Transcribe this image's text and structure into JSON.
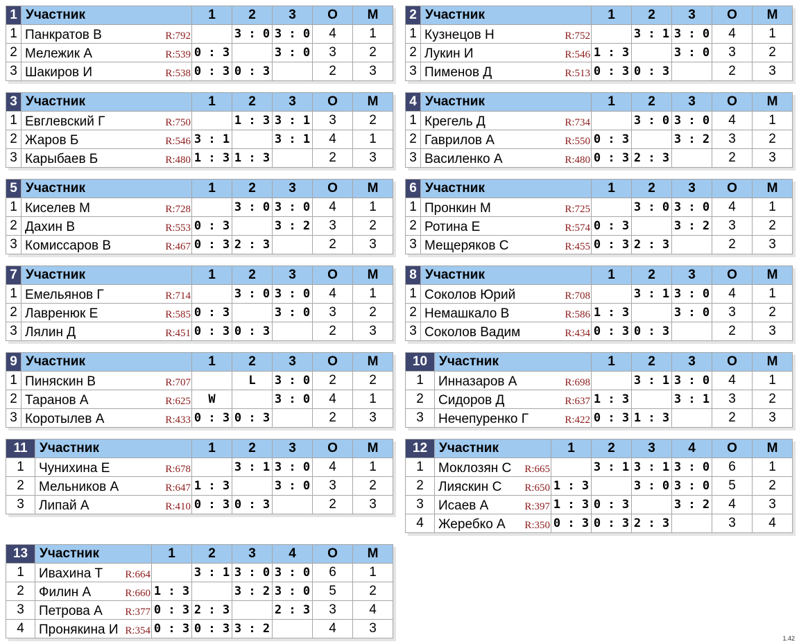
{
  "header": {
    "participant": "Участник",
    "points": "О",
    "place": "М"
  },
  "version": "1.42",
  "colors": {
    "win": "#89f597",
    "loss": "#f29089",
    "header": "#9fc9ef",
    "group_num": "#3e4670"
  },
  "groups": [
    {
      "num": "1",
      "cols": [
        "1",
        "2",
        "3"
      ],
      "players": [
        {
          "idx": "1",
          "name": "Панкратов В",
          "rating": "R:792",
          "res": [
            "",
            "3 : 0",
            "3 : 0"
          ],
          "pts": "4",
          "place": "1"
        },
        {
          "idx": "2",
          "name": "Мележик А",
          "rating": "R:539",
          "res": [
            "0 : 3",
            "",
            "3 : 0"
          ],
          "pts": "3",
          "place": "2"
        },
        {
          "idx": "3",
          "name": "Шакиров И",
          "rating": "R:538",
          "res": [
            "0 : 3",
            "0 : 3",
            ""
          ],
          "pts": "2",
          "place": "3"
        }
      ]
    },
    {
      "num": "2",
      "cols": [
        "1",
        "2",
        "3"
      ],
      "players": [
        {
          "idx": "1",
          "name": "Кузнецов Н",
          "rating": "R:752",
          "res": [
            "",
            "3 : 1",
            "3 : 0"
          ],
          "pts": "4",
          "place": "1"
        },
        {
          "idx": "2",
          "name": "Лукин И",
          "rating": "R:546",
          "res": [
            "1 : 3",
            "",
            "3 : 0"
          ],
          "pts": "3",
          "place": "2"
        },
        {
          "idx": "3",
          "name": "Пименов Д",
          "rating": "R:513",
          "res": [
            "0 : 3",
            "0 : 3",
            ""
          ],
          "pts": "2",
          "place": "3"
        }
      ]
    },
    {
      "num": "3",
      "cols": [
        "1",
        "2",
        "3"
      ],
      "players": [
        {
          "idx": "1",
          "name": "Евглевский Г",
          "rating": "R:750",
          "res": [
            "",
            "1 : 3",
            "3 : 1"
          ],
          "pts": "3",
          "place": "2"
        },
        {
          "idx": "2",
          "name": "Жаров Б",
          "rating": "R:546",
          "res": [
            "3 : 1",
            "",
            "3 : 1"
          ],
          "pts": "4",
          "place": "1"
        },
        {
          "idx": "3",
          "name": "Карыбаев Б",
          "rating": "R:480",
          "res": [
            "1 : 3",
            "1 : 3",
            ""
          ],
          "pts": "2",
          "place": "3"
        }
      ]
    },
    {
      "num": "4",
      "cols": [
        "1",
        "2",
        "3"
      ],
      "players": [
        {
          "idx": "1",
          "name": "Крегель Д",
          "rating": "R:734",
          "res": [
            "",
            "3 : 0",
            "3 : 0"
          ],
          "pts": "4",
          "place": "1"
        },
        {
          "idx": "2",
          "name": "Гаврилов А",
          "rating": "R:550",
          "res": [
            "0 : 3",
            "",
            "3 : 2"
          ],
          "pts": "3",
          "place": "2"
        },
        {
          "idx": "3",
          "name": "Василенко А",
          "rating": "R:480",
          "res": [
            "0 : 3",
            "2 : 3",
            ""
          ],
          "pts": "2",
          "place": "3"
        }
      ]
    },
    {
      "num": "5",
      "cols": [
        "1",
        "2",
        "3"
      ],
      "players": [
        {
          "idx": "1",
          "name": "Киселев М",
          "rating": "R:728",
          "res": [
            "",
            "3 : 0",
            "3 : 0"
          ],
          "pts": "4",
          "place": "1"
        },
        {
          "idx": "2",
          "name": "Дахин В",
          "rating": "R:553",
          "res": [
            "0 : 3",
            "",
            "3 : 2"
          ],
          "pts": "3",
          "place": "2"
        },
        {
          "idx": "3",
          "name": "Комиссаров В",
          "rating": "R:467",
          "res": [
            "0 : 3",
            "2 : 3",
            ""
          ],
          "pts": "2",
          "place": "3"
        }
      ]
    },
    {
      "num": "6",
      "cols": [
        "1",
        "2",
        "3"
      ],
      "players": [
        {
          "idx": "1",
          "name": "Пронкин М",
          "rating": "R:725",
          "res": [
            "",
            "3 : 0",
            "3 : 0"
          ],
          "pts": "4",
          "place": "1"
        },
        {
          "idx": "2",
          "name": "Ротина Е",
          "rating": "R:574",
          "res": [
            "0 : 3",
            "",
            "3 : 2"
          ],
          "pts": "3",
          "place": "2"
        },
        {
          "idx": "3",
          "name": "Мещеряков С",
          "rating": "R:455",
          "res": [
            "0 : 3",
            "2 : 3",
            ""
          ],
          "pts": "2",
          "place": "3"
        }
      ]
    },
    {
      "num": "7",
      "cols": [
        "1",
        "2",
        "3"
      ],
      "players": [
        {
          "idx": "1",
          "name": "Емельянов Г",
          "rating": "R:714",
          "res": [
            "",
            "3 : 0",
            "3 : 0"
          ],
          "pts": "4",
          "place": "1"
        },
        {
          "idx": "2",
          "name": "Лавренюк Е",
          "rating": "R:585",
          "res": [
            "0 : 3",
            "",
            "3 : 0"
          ],
          "pts": "3",
          "place": "2"
        },
        {
          "idx": "3",
          "name": "Лялин Д",
          "rating": "R:451",
          "res": [
            "0 : 3",
            "0 : 3",
            ""
          ],
          "pts": "2",
          "place": "3"
        }
      ]
    },
    {
      "num": "8",
      "cols": [
        "1",
        "2",
        "3"
      ],
      "players": [
        {
          "idx": "1",
          "name": "Соколов Юрий",
          "rating": "R:708",
          "res": [
            "",
            "3 : 1",
            "3 : 0"
          ],
          "pts": "4",
          "place": "1"
        },
        {
          "idx": "2",
          "name": "Немашкало В",
          "rating": "R:586",
          "res": [
            "1 : 3",
            "",
            "3 : 0"
          ],
          "pts": "3",
          "place": "2"
        },
        {
          "idx": "3",
          "name": "Соколов Вадим",
          "rating": "R:434",
          "res": [
            "0 : 3",
            "0 : 3",
            ""
          ],
          "pts": "2",
          "place": "3"
        }
      ]
    },
    {
      "num": "9",
      "cols": [
        "1",
        "2",
        "3"
      ],
      "players": [
        {
          "idx": "1",
          "name": "Пиняскин В",
          "rating": "R:707",
          "res": [
            "",
            "L",
            "3 : 0"
          ],
          "pts": "2",
          "place": "2"
        },
        {
          "idx": "2",
          "name": "Таранов А",
          "rating": "R:625",
          "res": [
            "W",
            "",
            "3 : 0"
          ],
          "pts": "4",
          "place": "1"
        },
        {
          "idx": "3",
          "name": "Коротылев А",
          "rating": "R:433",
          "res": [
            "0 : 3",
            "0 : 3",
            ""
          ],
          "pts": "2",
          "place": "3"
        }
      ]
    },
    {
      "num": "10",
      "cols": [
        "1",
        "2",
        "3"
      ],
      "players": [
        {
          "idx": "1",
          "name": "Инназаров А",
          "rating": "R:698",
          "res": [
            "",
            "3 : 1",
            "3 : 0"
          ],
          "pts": "4",
          "place": "1"
        },
        {
          "idx": "2",
          "name": "Сидоров Д",
          "rating": "R:637",
          "res": [
            "1 : 3",
            "",
            "3 : 1"
          ],
          "pts": "3",
          "place": "2"
        },
        {
          "idx": "3",
          "name": "Нечепуренко Г",
          "rating": "R:422",
          "res": [
            "0 : 3",
            "1 : 3",
            ""
          ],
          "pts": "2",
          "place": "3"
        }
      ]
    },
    {
      "num": "11",
      "cols": [
        "1",
        "2",
        "3"
      ],
      "players": [
        {
          "idx": "1",
          "name": "Чунихина Е",
          "rating": "R:678",
          "res": [
            "",
            "3 : 1",
            "3 : 0"
          ],
          "pts": "4",
          "place": "1"
        },
        {
          "idx": "2",
          "name": "Мельников А",
          "rating": "R:647",
          "res": [
            "1 : 3",
            "",
            "3 : 0"
          ],
          "pts": "3",
          "place": "2"
        },
        {
          "idx": "3",
          "name": "Липай А",
          "rating": "R:410",
          "res": [
            "0 : 3",
            "0 : 3",
            ""
          ],
          "pts": "2",
          "place": "3"
        }
      ]
    },
    {
      "num": "12",
      "cols": [
        "1",
        "2",
        "3",
        "4"
      ],
      "players": [
        {
          "idx": "1",
          "name": "Моклозян С",
          "rating": "R:665",
          "res": [
            "",
            "3 : 1",
            "3 : 1",
            "3 : 0"
          ],
          "pts": "6",
          "place": "1"
        },
        {
          "idx": "2",
          "name": "Лияскин С",
          "rating": "R:650",
          "res": [
            "1 : 3",
            "",
            "3 : 0",
            "3 : 0"
          ],
          "pts": "5",
          "place": "2"
        },
        {
          "idx": "3",
          "name": "Исаев А",
          "rating": "R:397",
          "res": [
            "1 : 3",
            "0 : 3",
            "",
            "3 : 2"
          ],
          "pts": "4",
          "place": "3"
        },
        {
          "idx": "4",
          "name": "Жеребко А",
          "rating": "R:350",
          "res": [
            "0 : 3",
            "0 : 3",
            "2 : 3",
            ""
          ],
          "pts": "3",
          "place": "4"
        }
      ]
    },
    {
      "num": "13",
      "cols": [
        "1",
        "2",
        "3",
        "4"
      ],
      "players": [
        {
          "idx": "1",
          "name": "Ивахина Т",
          "rating": "R:664",
          "res": [
            "",
            "3 : 1",
            "3 : 0",
            "3 : 0"
          ],
          "pts": "6",
          "place": "1"
        },
        {
          "idx": "2",
          "name": "Филин А",
          "rating": "R:660",
          "res": [
            "1 : 3",
            "",
            "3 : 2",
            "3 : 0"
          ],
          "pts": "5",
          "place": "2"
        },
        {
          "idx": "3",
          "name": "Петрова А",
          "rating": "R:377",
          "res": [
            "0 : 3",
            "2 : 3",
            "",
            "2 : 3"
          ],
          "pts": "3",
          "place": "4"
        },
        {
          "idx": "4",
          "name": "Пронякина И",
          "rating": "R:354",
          "res": [
            "0 : 3",
            "0 : 3",
            "3 : 2",
            ""
          ],
          "pts": "4",
          "place": "3"
        }
      ]
    }
  ]
}
